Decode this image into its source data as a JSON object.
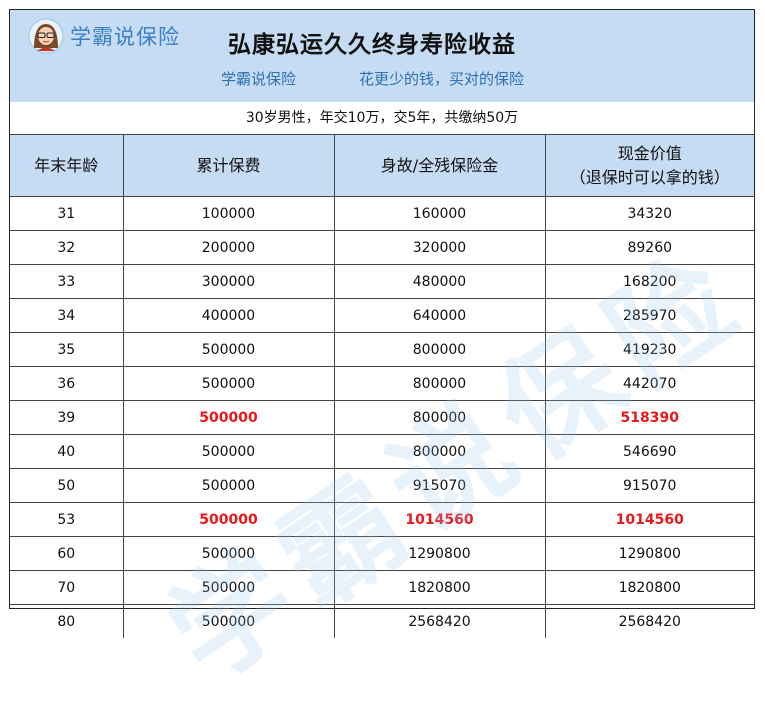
{
  "header": {
    "logo_text": "学霸说保险",
    "title": "弘康弘运久久终身寿险收益",
    "slogan_left": "学霸说保险",
    "slogan_right": "花更少的钱，买对的保险",
    "accent_color": "#3a7fc6",
    "banner_color": "#c6dcf2"
  },
  "subtitle": "30岁男性，年交10万，交5年，共缴纳50万",
  "table": {
    "headers": [
      "年末年龄",
      "累计保费",
      "身故/全残保险金",
      "现金价值",
      "（退保时可以拿的钱）"
    ],
    "rows": [
      {
        "age": "31",
        "premium": "100000",
        "death_benefit": "160000",
        "cash_value": "34320",
        "highlight": []
      },
      {
        "age": "32",
        "premium": "200000",
        "death_benefit": "320000",
        "cash_value": "89260",
        "highlight": []
      },
      {
        "age": "33",
        "premium": "300000",
        "death_benefit": "480000",
        "cash_value": "168200",
        "highlight": []
      },
      {
        "age": "34",
        "premium": "400000",
        "death_benefit": "640000",
        "cash_value": "285970",
        "highlight": []
      },
      {
        "age": "35",
        "premium": "500000",
        "death_benefit": "800000",
        "cash_value": "419230",
        "highlight": []
      },
      {
        "age": "36",
        "premium": "500000",
        "death_benefit": "800000",
        "cash_value": "442070",
        "highlight": []
      },
      {
        "age": "39",
        "premium": "500000",
        "death_benefit": "800000",
        "cash_value": "518390",
        "highlight": [
          "premium",
          "cash_value"
        ]
      },
      {
        "age": "40",
        "premium": "500000",
        "death_benefit": "800000",
        "cash_value": "546690",
        "highlight": []
      },
      {
        "age": "50",
        "premium": "500000",
        "death_benefit": "915070",
        "cash_value": "915070",
        "highlight": []
      },
      {
        "age": "53",
        "premium": "500000",
        "death_benefit": "1014560",
        "cash_value": "1014560",
        "highlight": [
          "premium",
          "death_benefit",
          "cash_value"
        ]
      },
      {
        "age": "60",
        "premium": "500000",
        "death_benefit": "1290800",
        "cash_value": "1290800",
        "highlight": []
      },
      {
        "age": "70",
        "premium": "500000",
        "death_benefit": "1820800",
        "cash_value": "1820800",
        "highlight": []
      },
      {
        "age": "80",
        "premium": "500000",
        "death_benefit": "2568420",
        "cash_value": "2568420",
        "highlight": []
      }
    ],
    "highlight_color": "#e8191c"
  },
  "watermark": "学霸说保险"
}
